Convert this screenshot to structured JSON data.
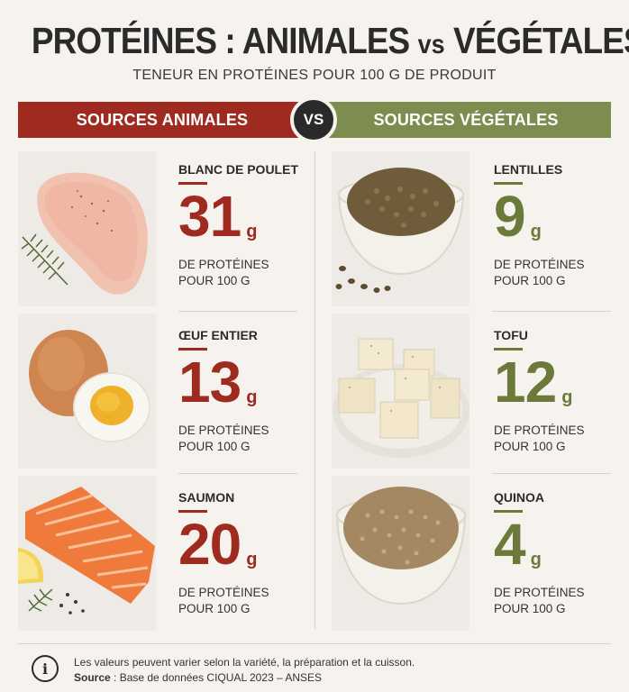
{
  "header": {
    "title_part1": "PROTÉINES : ANIMALES",
    "title_vs": "vs",
    "title_part2": "VÉGÉTALES",
    "subtitle": "TENEUR EN PROTÉINES POUR 100 G DE PRODUIT"
  },
  "banners": {
    "animal": "SOURCES ANIMALES",
    "vs": "VS",
    "plant": "SOURCES VÉGÉTALES"
  },
  "colors": {
    "animal": "#9e2a20",
    "plant": "#6b7a3a",
    "plant_banner": "#7d8d50",
    "dark": "#2a2a2a"
  },
  "animal_items": [
    {
      "name": "BLANC DE POULET",
      "value": "31",
      "unit": "g",
      "desc_line1": "DE PROTÉINES",
      "desc_line2": "POUR 100 G",
      "icon": "chicken-breast-photo"
    },
    {
      "name": "ŒUF ENTIER",
      "value": "13",
      "unit": "g",
      "desc_line1": "DE PROTÉINES",
      "desc_line2": "POUR 100 G",
      "icon": "egg-photo"
    },
    {
      "name": "SAUMON",
      "value": "20",
      "unit": "g",
      "desc_line1": "DE PROTÉINES",
      "desc_line2": "POUR 100 G",
      "icon": "salmon-photo"
    }
  ],
  "plant_items": [
    {
      "name": "LENTILLES",
      "value": "9",
      "unit": "g",
      "desc_line1": "DE PROTÉINES",
      "desc_line2": "POUR 100 G",
      "icon": "lentils-photo"
    },
    {
      "name": "TOFU",
      "value": "12",
      "unit": "g",
      "desc_line1": "DE PROTÉINES",
      "desc_line2": "POUR 100 G",
      "icon": "tofu-photo"
    },
    {
      "name": "QUINOA",
      "value": "4",
      "unit": "g",
      "desc_line1": "DE PROTÉINES",
      "desc_line2": "POUR 100 G",
      "icon": "quinoa-photo"
    }
  ],
  "footer": {
    "icon": "info-icon",
    "note": "Les valeurs peuvent varier selon la variété, la préparation et la cuisson.",
    "source_label": "Source",
    "source_text": " : Base de données CIQUAL 2023 – ANSES"
  }
}
